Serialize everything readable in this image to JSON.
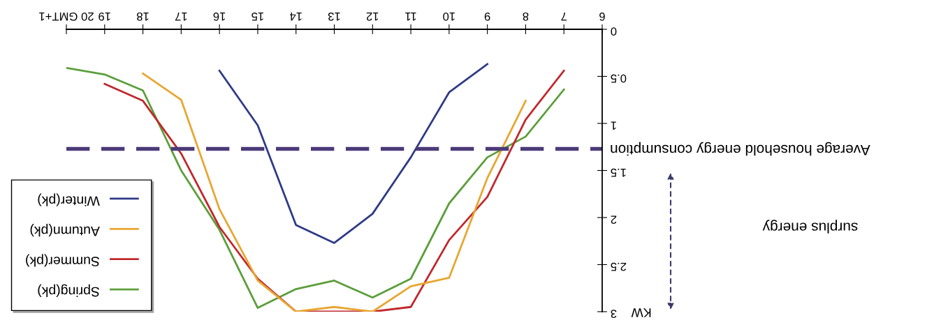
{
  "chart_data": {
    "type": "line",
    "ylabel": "KW",
    "x": [
      7,
      8,
      9,
      10,
      11,
      12,
      13,
      14,
      15,
      16,
      17,
      18,
      19,
      20
    ],
    "xlim": [
      20,
      6
    ],
    "ylim": [
      3,
      0
    ],
    "xticks": [
      6,
      7,
      8,
      9,
      10,
      11,
      12,
      13,
      14,
      15,
      16,
      17,
      18,
      19,
      {
        "value": 20,
        "label": "20 GMT+1"
      }
    ],
    "yticks": [
      0,
      0.5,
      1,
      1.5,
      2,
      2.5,
      3
    ],
    "series": [
      {
        "name": "Spring(pk)",
        "color": "#5a9e3a",
        "values": [
          0.64,
          1.14,
          1.36,
          1.85,
          2.65,
          2.85,
          2.67,
          2.76,
          2.96,
          2.13,
          1.5,
          0.65,
          0.48,
          0.41
        ]
      },
      {
        "name": "Summer(pk)",
        "color": "#c0282d",
        "values": [
          0.44,
          0.96,
          1.78,
          2.24,
          2.95,
          3.0,
          3.0,
          3.0,
          2.65,
          2.1,
          1.32,
          0.76,
          0.58,
          null
        ]
      },
      {
        "name": "Autumn(pk)",
        "color": "#e8a631",
        "values": [
          null,
          0.76,
          1.58,
          2.64,
          2.73,
          3.0,
          2.95,
          3.0,
          2.67,
          1.91,
          0.75,
          0.47,
          null,
          null
        ]
      },
      {
        "name": "Winter(pk)",
        "color": "#2e3a87",
        "values": [
          null,
          null,
          0.37,
          0.67,
          1.36,
          1.96,
          2.27,
          2.08,
          1.02,
          0.44,
          null,
          null,
          null,
          null
        ]
      }
    ],
    "ref_lines": [
      {
        "axis": "y",
        "value": 1.27,
        "label": "Average household energy consumption",
        "color": "#4b3a78",
        "line_style": "dashed"
      }
    ],
    "annotations": [
      "surplus energy"
    ],
    "legend": "bottom left",
    "grid": false,
    "marker": "none",
    "line_style": "solid"
  }
}
